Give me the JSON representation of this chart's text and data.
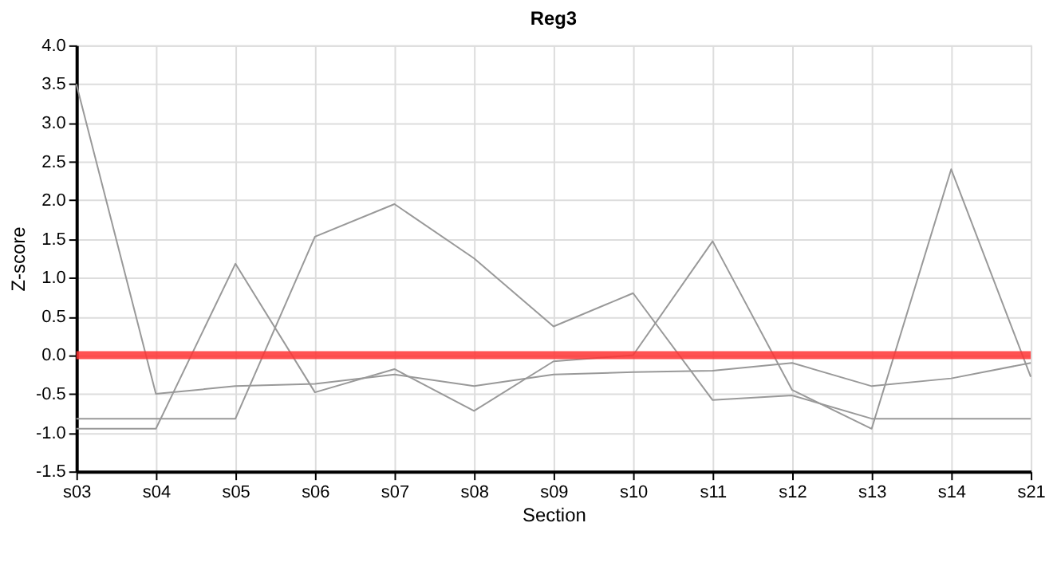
{
  "chart_data": {
    "type": "line",
    "title": "Reg3",
    "xlabel": "Section",
    "ylabel": "Z-score",
    "categories": [
      "s03",
      "s04",
      "s05",
      "s06",
      "s07",
      "s08",
      "s09",
      "s10",
      "s11",
      "s12",
      "s13",
      "s14",
      "s21"
    ],
    "series": [
      {
        "color": "#999999",
        "values": [
          3.5,
          -0.5,
          -0.4,
          -0.37,
          -0.25,
          -0.4,
          -0.25,
          -0.22,
          -0.2,
          -0.1,
          -0.4,
          -0.3,
          -0.1
        ]
      },
      {
        "color": "#999999",
        "values": [
          -0.95,
          -0.95,
          1.18,
          -0.48,
          -0.18,
          -0.72,
          -0.08,
          0.0,
          1.47,
          -0.45,
          -0.95,
          2.4,
          -0.28
        ]
      },
      {
        "color": "#999999",
        "values": [
          -0.82,
          -0.82,
          -0.82,
          1.53,
          1.95,
          1.25,
          0.37,
          0.8,
          -0.58,
          -0.52,
          -0.82,
          -0.82,
          -0.82
        ]
      }
    ],
    "ref_lines": [
      {
        "axis": "y",
        "value": 0,
        "color": "#ff3333"
      }
    ],
    "ylim": [
      -1.5,
      4.0
    ],
    "yticks": [
      -1.5,
      {
        "value": -1,
        "label": "-1.0"
      },
      -0.5,
      {
        "value": 0,
        "label": "0.0"
      },
      0.5,
      {
        "value": 1,
        "label": "1.0"
      },
      1.5,
      {
        "value": 2,
        "label": "2.0"
      },
      2.5,
      {
        "value": 3,
        "label": "3.0"
      },
      3.5,
      {
        "value": 4,
        "label": "4.0"
      }
    ],
    "grid": true
  }
}
